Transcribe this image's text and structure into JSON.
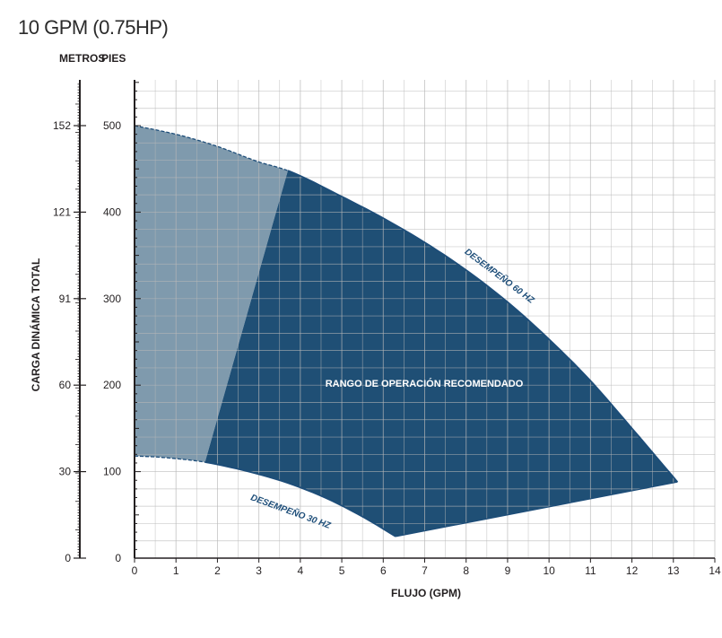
{
  "title": "10 GPM (0.75HP)",
  "unit_headers": {
    "left": "METROS",
    "right": "PIES"
  },
  "colors": {
    "recommended": "#1f4f75",
    "extended": "#7f9aad",
    "curve": "#1d4d79",
    "grid": "#b8b8b8"
  },
  "chart_data": {
    "type": "area",
    "title": "10 GPM (0.75HP)",
    "xlabel": "FLUJO (GPM)",
    "ylabel": "CARGA DINÁMICA TOTAL",
    "xlim": [
      0,
      14
    ],
    "ylim": [
      0,
      550
    ],
    "x_ticks": [
      0,
      1,
      2,
      3,
      4,
      5,
      6,
      7,
      8,
      9,
      10,
      11,
      12,
      13,
      14
    ],
    "y_ticks_feet": [
      0,
      100,
      200,
      300,
      400,
      500
    ],
    "y_ticks_meters": [
      {
        "label": "0",
        "feet": 0
      },
      {
        "label": "30",
        "feet": 100
      },
      {
        "label": "60",
        "feet": 200
      },
      {
        "label": "91",
        "feet": 300
      },
      {
        "label": "121",
        "feet": 400
      },
      {
        "label": "152",
        "feet": 500
      }
    ],
    "grid": true,
    "series": [
      {
        "name": "DESEMPEÑO 60 HZ",
        "x": [
          0,
          1,
          2,
          3,
          3.7,
          5,
          6,
          7,
          8,
          9,
          10,
          11,
          12,
          13.1
        ],
        "y": [
          500,
          490,
          476,
          458,
          448,
          418,
          393,
          365,
          333,
          296,
          253,
          205,
          150,
          88
        ]
      },
      {
        "name": "DESEMPEÑO 30 HZ",
        "x": [
          0,
          0.5,
          1,
          1.7,
          2.5,
          3.5,
          4.5,
          5.5,
          6.3
        ],
        "y": [
          118,
          117,
          115,
          111,
          103,
          90,
          72,
          48,
          25
        ]
      }
    ],
    "regions": [
      {
        "name": "RANGO DE OPERACIÓN RECOMENDADO",
        "boundary": [
          [
            1.7,
            111
          ],
          [
            3.7,
            448
          ]
        ]
      }
    ],
    "annotations": [
      "RANGO DE OPERACIÓN RECOMENDADO",
      "DESEMPEÑO 60 HZ",
      "DESEMPEÑO 30 HZ"
    ]
  }
}
